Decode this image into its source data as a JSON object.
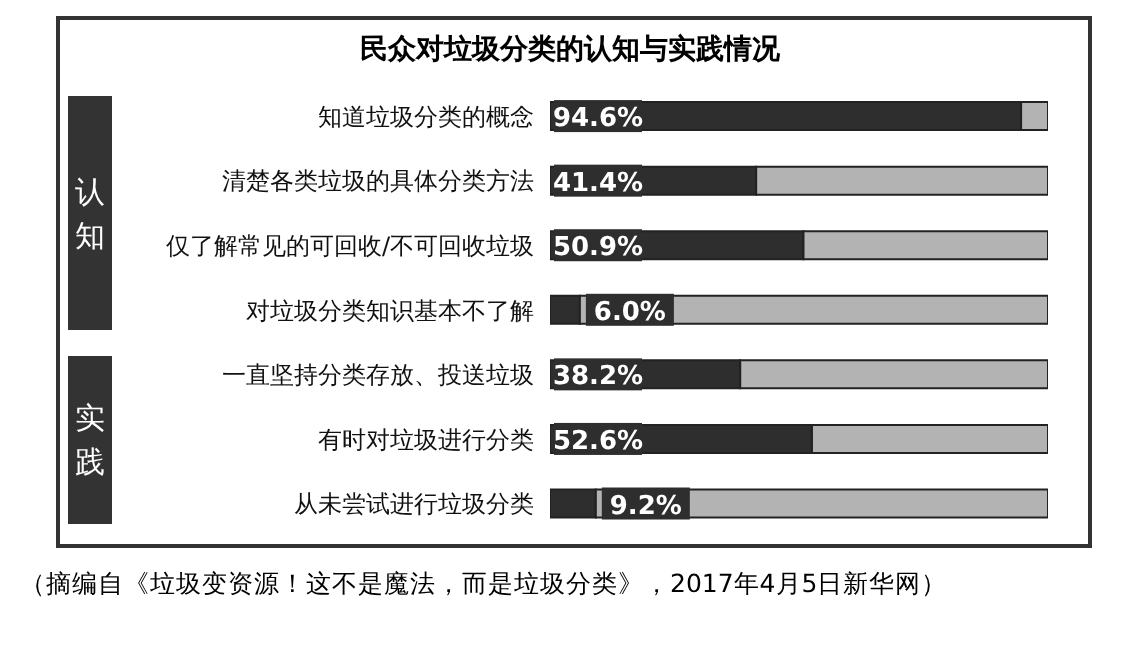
{
  "chart_data": {
    "type": "bar",
    "orientation": "horizontal",
    "stacked": true,
    "title": "民众对垃圾分类的认知与实践情况",
    "categories": [
      "知道垃圾分类的概念",
      "清楚各类垃圾的具体分类方法",
      "仅了解常见的可回收/不可回收垃圾",
      "对垃圾分类知识基本不了解",
      "一直坚持分类存放、投送垃圾",
      "有时对垃圾进行分类",
      "从未尝试进行垃圾分类"
    ],
    "xlim": [
      0,
      100
    ],
    "tick_labels": "y",
    "series": [
      {
        "color": "#2e2e2e",
        "values": [
          94.6,
          41.4,
          50.9,
          6.0,
          38.2,
          52.6,
          9.2
        ],
        "value_labels": [
          "94.6%",
          "41.4%",
          "50.9%",
          "6.0%",
          "38.2%",
          "52.6%",
          "9.2%"
        ]
      },
      {
        "color": "#b3b3b3",
        "values": [
          5.4,
          58.6,
          49.1,
          94.0,
          61.8,
          47.4,
          90.8
        ]
      }
    ],
    "annotations": [
      "认知",
      "实践",
      "（摘编自《垃圾变资源！这不是魔法，而是垃圾分类》，2017年4月5日新华网）"
    ]
  }
}
